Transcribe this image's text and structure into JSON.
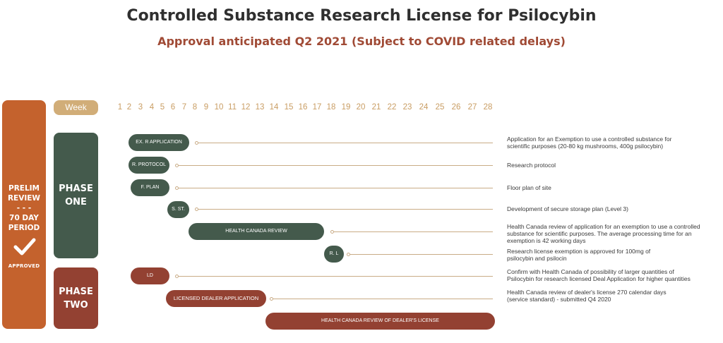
{
  "title": "Controlled Substance Research License for Psilocybin",
  "subtitle": "Approval anticipated Q2 2021 (Subject to COVID related delays)",
  "prelim": {
    "lines": [
      "PRELIM",
      "REVIEW",
      "- - -",
      "70 DAY",
      "PERIOD"
    ],
    "status": "APPROVED",
    "icon": "checkmark-icon"
  },
  "week_label": "Week",
  "weeks": [
    "1",
    "2",
    "3",
    "4",
    "5",
    "6",
    "7",
    "8",
    "9",
    "10",
    "11",
    "12",
    "13",
    "14",
    "15",
    "16",
    "17",
    "18",
    "19",
    "20",
    "21",
    "22",
    "23",
    "24",
    "25",
    "26",
    "27",
    "28"
  ],
  "phases": [
    {
      "line1": "PHASE",
      "line2": "ONE",
      "color": "#445a4c"
    },
    {
      "line1": "PHASE",
      "line2": "TWO",
      "color": "#934132"
    }
  ],
  "tasks": [
    {
      "label": "EX. R APPLICATION",
      "desc_lines": [
        "Application for an Exemption to use a controlled substance for",
        "scientific purposes (20-80 kg mushrooms, 400g psilocybin)"
      ]
    },
    {
      "label": "R. PROTOCOL",
      "desc_lines": [
        "Research protocol"
      ]
    },
    {
      "label": "F. PLAN",
      "desc_lines": [
        "Floor plan of site"
      ]
    },
    {
      "label": "S. ST.",
      "desc_lines": [
        "Development of secure storage plan (Level 3)"
      ]
    },
    {
      "label": "HEALTH CANADA REVIEW",
      "desc_lines": [
        "Health Canada review of application for an exemption to use a controlled",
        "substance for scientific purposes. The average processing time for an",
        "exemption is 42 working days"
      ]
    },
    {
      "label": "R. L",
      "desc_lines": [
        "Research license exemption is approved for 100mg of",
        "psilocybin and psilocin"
      ]
    },
    {
      "label": "LD",
      "desc_lines": [
        "Confirm with Health Canada of possibility of larger quantities of",
        "Psilocybin for research licensed Deal Application for higher quantities"
      ]
    },
    {
      "label": "LICENSED DEALER APPLICATION",
      "desc_lines": [
        "Health Canada review of dealer's license 270 calendar days",
        "(service standard) - submitted Q4 2020"
      ]
    },
    {
      "label": "HEALTH CANADA REVIEW OF DEALER'S LICENSE",
      "desc_lines": []
    }
  ]
}
